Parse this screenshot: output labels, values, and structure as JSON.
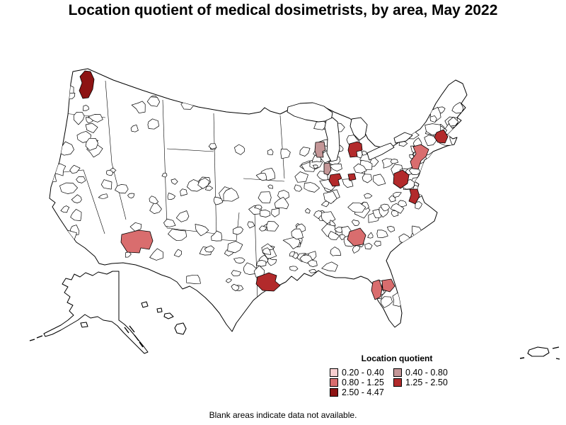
{
  "title": "Location quotient of medical dosimetrists, by area, May 2022",
  "footnote": "Blank areas indicate data not available.",
  "legend": {
    "title": "Location quotient",
    "classes": [
      {
        "label": "0.20 - 0.40",
        "color": "#f8cfd0"
      },
      {
        "label": "0.40 - 0.80",
        "color": "#c49697"
      },
      {
        "label": "0.80 - 1.25",
        "color": "#d96d6e"
      },
      {
        "label": "1.25 - 2.50",
        "color": "#b22a2b"
      },
      {
        "label": "2.50 - 4.47",
        "color": "#8d1313"
      }
    ]
  },
  "map": {
    "land_color": "#ffffff",
    "boundary_color": "#000000",
    "note": "choropleth of U.S. metropolitan areas; blank areas = no data",
    "regions": [
      {
        "name": "seattle-tacoma-wa",
        "class": 4
      },
      {
        "name": "phoenix-mesa-az",
        "class": 2
      },
      {
        "name": "houston-tx",
        "class": 3
      },
      {
        "name": "madison-wi",
        "class": 1
      },
      {
        "name": "chicago-il",
        "class": 1
      },
      {
        "name": "grand-rapids-mi",
        "class": 3
      },
      {
        "name": "indianapolis-in",
        "class": 3
      },
      {
        "name": "dayton-oh",
        "class": 3
      },
      {
        "name": "boston-ma",
        "class": 3
      },
      {
        "name": "new-york-newark-ny-nj",
        "class": 2
      },
      {
        "name": "washington-baltimore-dc-md",
        "class": 3
      },
      {
        "name": "richmond-va",
        "class": 3
      },
      {
        "name": "atlanta-ga",
        "class": 2
      },
      {
        "name": "tampa-st-petersburg-fl",
        "class": 2
      },
      {
        "name": "orlando-lakeland-fl",
        "class": 2
      }
    ]
  }
}
